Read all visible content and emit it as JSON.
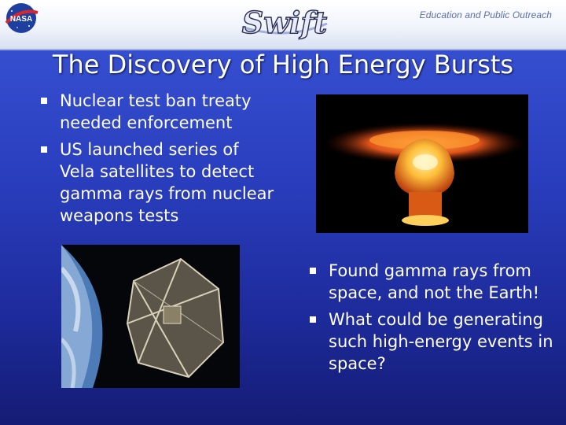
{
  "header": {
    "nasa_logo_text": "NASA",
    "swift_logo_text": "Swift",
    "outreach_label": "Education and Public Outreach"
  },
  "title": "The Discovery of High Energy Bursts",
  "bullets_left": [
    "Nuclear test ban treaty needed enforcement",
    "US launched series of Vela satellites to detect gamma rays from nuclear weapons tests"
  ],
  "bullets_right": [
    "Found gamma rays from space, and not the Earth!",
    "What could be generating such high-energy events in space?"
  ],
  "images": {
    "nuclear": "nuclear-explosion-photo",
    "satellite": "vela-satellite-photo"
  },
  "colors": {
    "background": "#2a3fc0",
    "text": "#ffffff",
    "explosion": "#ff8c1a"
  }
}
